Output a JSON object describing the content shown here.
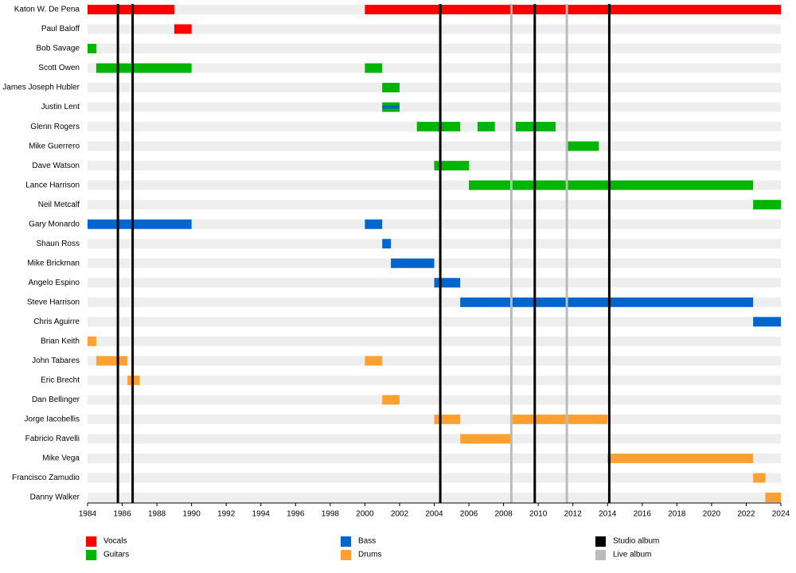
{
  "chart_data": {
    "type": "timeline",
    "xlim": [
      1984,
      2024
    ],
    "xticks": [
      1984,
      1986,
      1988,
      1990,
      1992,
      1994,
      1996,
      1998,
      2000,
      2002,
      2004,
      2006,
      2008,
      2010,
      2012,
      2014,
      2016,
      2018,
      2020,
      2022,
      2024
    ],
    "roles": [
      {
        "name": "Vocals",
        "color": "#ff0000"
      },
      {
        "name": "Guitars",
        "color": "#00b400"
      },
      {
        "name": "Bass",
        "color": "#0066cc"
      },
      {
        "name": "Drums",
        "color": "#ffa030"
      }
    ],
    "markers": [
      {
        "name": "Studio album",
        "color": "#000000",
        "x": [
          1985.75,
          1986.6,
          2004.35,
          2009.8,
          2014.1
        ]
      },
      {
        "name": "Live album",
        "color": "#bbbbbb",
        "x": [
          2008.45,
          2011.65
        ]
      }
    ],
    "members": [
      {
        "name": "Katon W. De Pena",
        "periods": [
          {
            "role": "Vocals",
            "start": 1984,
            "end": 1989
          },
          {
            "role": "Vocals",
            "start": 2000,
            "end": 2024
          }
        ]
      },
      {
        "name": "Paul Baloff",
        "periods": [
          {
            "role": "Vocals",
            "start": 1989,
            "end": 1990
          }
        ]
      },
      {
        "name": "Bob Savage",
        "periods": [
          {
            "role": "Guitars",
            "start": 1984,
            "end": 1984.5
          }
        ]
      },
      {
        "name": "Scott Owen",
        "periods": [
          {
            "role": "Guitars",
            "start": 1984.5,
            "end": 1990
          },
          {
            "role": "Guitars",
            "start": 2000,
            "end": 2001
          }
        ]
      },
      {
        "name": "James Joseph Hubler",
        "periods": [
          {
            "role": "Guitars",
            "start": 2001,
            "end": 2002
          }
        ]
      },
      {
        "name": "Justin Lent",
        "periods": [
          {
            "role": "Guitars",
            "start": 2001,
            "end": 2002
          },
          {
            "role": "Bass",
            "start": 2001,
            "end": 2002
          }
        ]
      },
      {
        "name": "Glenn Rogers",
        "periods": [
          {
            "role": "Guitars",
            "start": 2003,
            "end": 2005.5
          },
          {
            "role": "Guitars",
            "start": 2006.5,
            "end": 2007.5
          },
          {
            "role": "Guitars",
            "start": 2008.7,
            "end": 2011
          }
        ]
      },
      {
        "name": "Mike Guerrero",
        "periods": [
          {
            "role": "Guitars",
            "start": 2011.6,
            "end": 2013.5
          }
        ]
      },
      {
        "name": "Dave Watson",
        "periods": [
          {
            "role": "Guitars",
            "start": 2004,
            "end": 2006
          }
        ]
      },
      {
        "name": "Lance Harrison",
        "periods": [
          {
            "role": "Guitars",
            "start": 2006,
            "end": 2022.4
          }
        ]
      },
      {
        "name": "Neil Metcalf",
        "periods": [
          {
            "role": "Guitars",
            "start": 2022.4,
            "end": 2024
          }
        ]
      },
      {
        "name": "Gary Monardo",
        "periods": [
          {
            "role": "Bass",
            "start": 1984,
            "end": 1990
          },
          {
            "role": "Bass",
            "start": 2000,
            "end": 2001
          }
        ]
      },
      {
        "name": "Shaun Ross",
        "periods": [
          {
            "role": "Bass",
            "start": 2001,
            "end": 2001.5
          }
        ]
      },
      {
        "name": "Mike Brickman",
        "periods": [
          {
            "role": "Bass",
            "start": 2001.5,
            "end": 2004
          }
        ]
      },
      {
        "name": "Angelo Espino",
        "periods": [
          {
            "role": "Bass",
            "start": 2004,
            "end": 2005.5
          }
        ]
      },
      {
        "name": "Steve Harrison",
        "periods": [
          {
            "role": "Bass",
            "start": 2005.5,
            "end": 2022.4
          }
        ]
      },
      {
        "name": "Chris Aguirre",
        "periods": [
          {
            "role": "Bass",
            "start": 2022.4,
            "end": 2024
          }
        ]
      },
      {
        "name": "Brian Keith",
        "periods": [
          {
            "role": "Drums",
            "start": 1984,
            "end": 1984.5
          }
        ]
      },
      {
        "name": "John Tabares",
        "periods": [
          {
            "role": "Drums",
            "start": 1984.5,
            "end": 1986.3
          },
          {
            "role": "Drums",
            "start": 2000,
            "end": 2001
          }
        ]
      },
      {
        "name": "Eric Brecht",
        "periods": [
          {
            "role": "Drums",
            "start": 1986.3,
            "end": 1987
          }
        ]
      },
      {
        "name": "Dan Bellinger",
        "periods": [
          {
            "role": "Drums",
            "start": 2001,
            "end": 2002
          }
        ]
      },
      {
        "name": "Jorge Iacobellis",
        "periods": [
          {
            "role": "Drums",
            "start": 2004,
            "end": 2005.5
          },
          {
            "role": "Drums",
            "start": 2008.5,
            "end": 2014
          }
        ]
      },
      {
        "name": "Fabricio Ravelli",
        "periods": [
          {
            "role": "Drums",
            "start": 2005.5,
            "end": 2008.5
          }
        ]
      },
      {
        "name": "Mike Vega",
        "periods": [
          {
            "role": "Drums",
            "start": 2014,
            "end": 2022.4
          }
        ]
      },
      {
        "name": "Francisco Zamudio",
        "periods": [
          {
            "role": "Drums",
            "start": 2022.4,
            "end": 2023.1
          }
        ]
      },
      {
        "name": "Danny Walker",
        "periods": [
          {
            "role": "Drums",
            "start": 2023.1,
            "end": 2024
          }
        ]
      }
    ]
  }
}
